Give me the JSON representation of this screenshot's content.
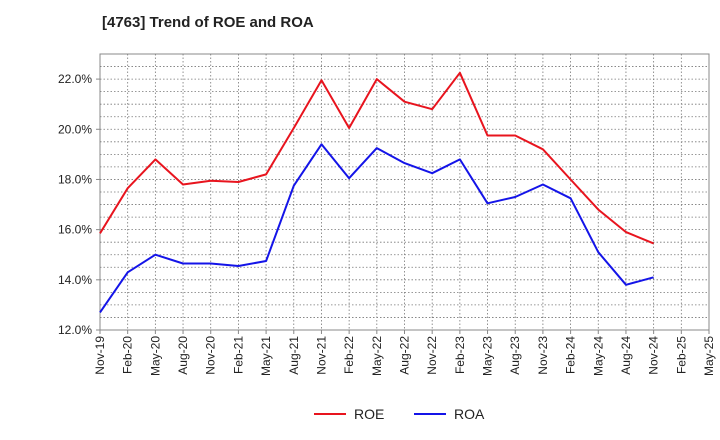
{
  "chart_data": {
    "type": "line",
    "title": "[4763]  Trend of ROE and ROA",
    "xlabel": "",
    "ylabel": "",
    "ylim": [
      12.0,
      23.0
    ],
    "y_ticks": [
      "12.0%",
      "14.0%",
      "16.0%",
      "18.0%",
      "20.0%",
      "22.0%"
    ],
    "y_tick_values": [
      12,
      14,
      16,
      18,
      20,
      22
    ],
    "categories": [
      "Nov-19",
      "Feb-20",
      "May-20",
      "Aug-20",
      "Nov-20",
      "Feb-21",
      "May-21",
      "Aug-21",
      "Nov-21",
      "Feb-22",
      "May-22",
      "Aug-22",
      "Nov-22",
      "Feb-23",
      "May-23",
      "Aug-23",
      "Nov-23",
      "Feb-24",
      "May-24",
      "Aug-24",
      "Nov-24",
      "Feb-25",
      "May-25"
    ],
    "grid": true,
    "legend_position": "bottom",
    "series": [
      {
        "name": "ROE",
        "color": "#e8141e",
        "values": [
          15.85,
          17.65,
          18.8,
          17.8,
          17.95,
          17.9,
          18.2,
          20.05,
          21.95,
          20.05,
          22.0,
          21.1,
          20.8,
          22.25,
          19.75,
          19.75,
          19.2,
          18.0,
          16.8,
          15.9,
          15.45,
          null,
          null
        ]
      },
      {
        "name": "ROA",
        "color": "#1414e8",
        "values": [
          12.7,
          14.3,
          15.0,
          14.65,
          14.65,
          14.55,
          14.75,
          17.75,
          19.4,
          18.05,
          19.25,
          18.65,
          18.25,
          18.8,
          17.05,
          17.3,
          17.8,
          17.25,
          15.1,
          13.8,
          14.1,
          null,
          null
        ]
      }
    ]
  }
}
